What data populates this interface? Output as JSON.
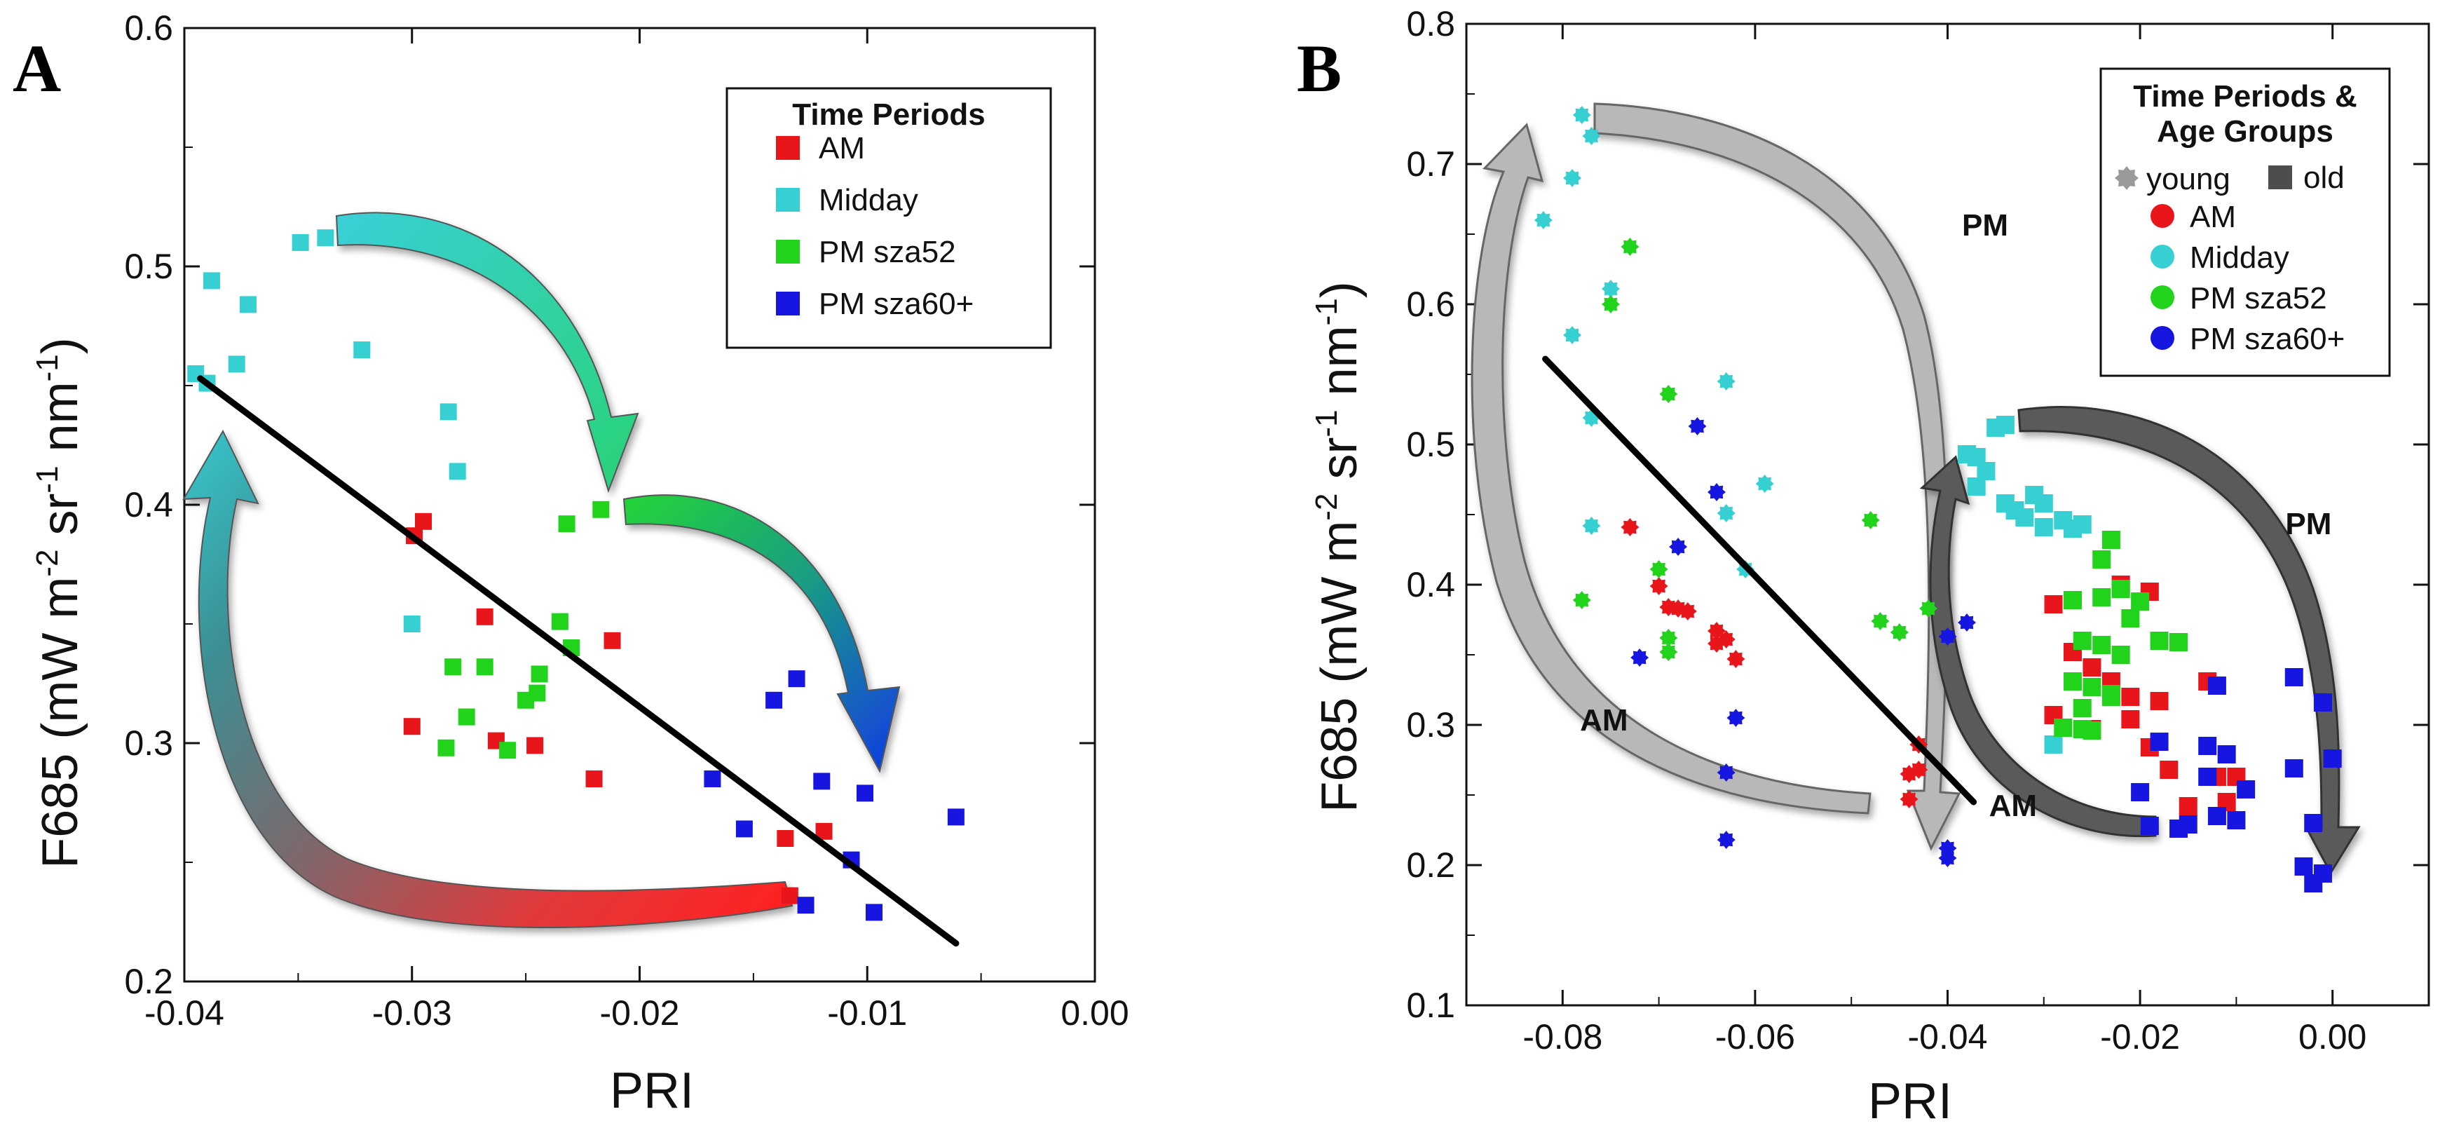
{
  "chart_data": [
    {
      "panel": "A",
      "type": "scatter",
      "xlabel": "PRI",
      "ylabel": "F685 (mW m-2 sr-1 nm-1)",
      "xlim": [
        -0.04,
        0.0
      ],
      "ylim": [
        0.2,
        0.6
      ],
      "xticks": [
        "-0.04",
        "-0.03",
        "-0.02",
        "-0.01",
        "0.00"
      ],
      "yticks": [
        "0.2",
        "0.3",
        "0.4",
        "0.5",
        "0.6"
      ],
      "legend": {
        "title": "Time Periods",
        "placement": "top-right"
      },
      "series": [
        {
          "name": "AM",
          "color": "#e8161b",
          "marker": "square",
          "points": [
            [
              -0.0299,
              0.387
            ],
            [
              -0.0295,
              0.393
            ],
            [
              -0.0268,
              0.353
            ],
            [
              -0.0212,
              0.343
            ],
            [
              -0.03,
              0.307
            ],
            [
              -0.0263,
              0.301
            ],
            [
              -0.0246,
              0.299
            ],
            [
              -0.022,
              0.285
            ],
            [
              -0.0136,
              0.26
            ],
            [
              -0.0119,
              0.263
            ],
            [
              -0.0134,
              0.236
            ]
          ]
        },
        {
          "name": "Midday",
          "color": "#36d0d2",
          "marker": "square",
          "points": [
            [
              -0.0395,
              0.455
            ],
            [
              -0.039,
              0.451
            ],
            [
              -0.0388,
              0.494
            ],
            [
              -0.0377,
              0.459
            ],
            [
              -0.0372,
              0.484
            ],
            [
              -0.0349,
              0.51
            ],
            [
              -0.0338,
              0.512
            ],
            [
              -0.0322,
              0.465
            ],
            [
              -0.03,
              0.35
            ],
            [
              -0.0284,
              0.439
            ],
            [
              -0.028,
              0.414
            ]
          ]
        },
        {
          "name": "PM sza52",
          "color": "#22d31c",
          "marker": "square",
          "points": [
            [
              -0.0217,
              0.398
            ],
            [
              -0.0232,
              0.392
            ],
            [
              -0.0235,
              0.351
            ],
            [
              -0.023,
              0.34
            ],
            [
              -0.0282,
              0.332
            ],
            [
              -0.0268,
              0.332
            ],
            [
              -0.0244,
              0.329
            ],
            [
              -0.0245,
              0.321
            ],
            [
              -0.0276,
              0.311
            ],
            [
              -0.025,
              0.318
            ],
            [
              -0.0285,
              0.298
            ],
            [
              -0.0258,
              0.297
            ]
          ]
        },
        {
          "name": "PM sza60+",
          "color": "#1616e0",
          "marker": "square",
          "points": [
            [
              -0.0131,
              0.327
            ],
            [
              -0.0141,
              0.318
            ],
            [
              -0.0168,
              0.285
            ],
            [
              -0.0154,
              0.264
            ],
            [
              -0.012,
              0.284
            ],
            [
              -0.0101,
              0.279
            ],
            [
              -0.0061,
              0.269
            ],
            [
              -0.0107,
              0.251
            ],
            [
              -0.0097,
              0.229
            ],
            [
              -0.0127,
              0.232
            ]
          ]
        }
      ],
      "regression_line": [
        [
          -0.0393,
          0.453
        ],
        [
          -0.0061,
          0.216
        ]
      ],
      "annotations": []
    },
    {
      "panel": "B",
      "type": "scatter",
      "xlabel": "PRI",
      "ylabel": "F685 (mW m-2 sr-1 nm-1)",
      "xlim": [
        -0.09,
        0.01
      ],
      "ylim": [
        0.1,
        0.8
      ],
      "xticks": [
        "-0.08",
        "-0.06",
        "-0.04",
        "-0.02",
        "0.00"
      ],
      "yticks": [
        "0.1",
        "0.2",
        "0.3",
        "0.4",
        "0.5",
        "0.6",
        "0.7",
        "0.8"
      ],
      "legend": {
        "title_line1": "Time Periods &",
        "title_line2": "Age Groups",
        "placement": "top-right",
        "age_groups": [
          {
            "name": "young",
            "color": "#9a9a9a",
            "marker": "star"
          },
          {
            "name": "old",
            "color": "#4d4d4d",
            "marker": "square"
          }
        ]
      },
      "series": [
        {
          "name": "AM",
          "color": "#e8161b",
          "young": [
            [
              -0.073,
              0.441
            ],
            [
              -0.07,
              0.399
            ],
            [
              -0.068,
              0.383
            ],
            [
              -0.067,
              0.381
            ],
            [
              -0.069,
              0.384
            ],
            [
              -0.064,
              0.367
            ],
            [
              -0.063,
              0.361
            ],
            [
              -0.064,
              0.358
            ],
            [
              -0.062,
              0.347
            ],
            [
              -0.044,
              0.265
            ],
            [
              -0.043,
              0.268
            ],
            [
              -0.044,
              0.247
            ],
            [
              -0.043,
              0.286
            ]
          ],
          "old": [
            [
              -0.022,
              0.4
            ],
            [
              -0.019,
              0.395
            ],
            [
              -0.029,
              0.386
            ],
            [
              -0.027,
              0.352
            ],
            [
              -0.025,
              0.341
            ],
            [
              -0.023,
              0.331
            ],
            [
              -0.021,
              0.32
            ],
            [
              -0.018,
              0.317
            ],
            [
              -0.021,
              0.304
            ],
            [
              -0.025,
              0.297
            ],
            [
              -0.029,
              0.307
            ],
            [
              -0.013,
              0.331
            ],
            [
              -0.017,
              0.268
            ],
            [
              -0.012,
              0.263
            ],
            [
              -0.01,
              0.263
            ],
            [
              -0.015,
              0.242
            ],
            [
              -0.011,
              0.245
            ],
            [
              -0.019,
              0.284
            ]
          ]
        },
        {
          "name": "Midday",
          "color": "#36d0d2",
          "young": [
            [
              -0.078,
              0.735
            ],
            [
              -0.077,
              0.72
            ],
            [
              -0.079,
              0.69
            ],
            [
              -0.082,
              0.66
            ],
            [
              -0.075,
              0.611
            ],
            [
              -0.079,
              0.578
            ],
            [
              -0.063,
              0.545
            ],
            [
              -0.077,
              0.519
            ],
            [
              -0.059,
              0.472
            ],
            [
              -0.063,
              0.451
            ],
            [
              -0.077,
              0.442
            ],
            [
              -0.061,
              0.411
            ]
          ],
          "old": [
            [
              -0.035,
              0.512
            ],
            [
              -0.034,
              0.514
            ],
            [
              -0.037,
              0.491
            ],
            [
              -0.038,
              0.493
            ],
            [
              -0.036,
              0.481
            ],
            [
              -0.037,
              0.47
            ],
            [
              -0.034,
              0.458
            ],
            [
              -0.031,
              0.464
            ],
            [
              -0.03,
              0.458
            ],
            [
              -0.033,
              0.453
            ],
            [
              -0.028,
              0.446
            ],
            [
              -0.027,
              0.44
            ],
            [
              -0.026,
              0.443
            ],
            [
              -0.03,
              0.441
            ],
            [
              -0.032,
              0.448
            ],
            [
              -0.029,
              0.286
            ]
          ]
        },
        {
          "name": "PM sza52",
          "color": "#22d31c",
          "young": [
            [
              -0.073,
              0.641
            ],
            [
              -0.075,
              0.6
            ],
            [
              -0.069,
              0.536
            ],
            [
              -0.07,
              0.411
            ],
            [
              -0.078,
              0.389
            ],
            [
              -0.069,
              0.362
            ],
            [
              -0.069,
              0.352
            ],
            [
              -0.048,
              0.446
            ],
            [
              -0.047,
              0.374
            ],
            [
              -0.045,
              0.366
            ],
            [
              -0.042,
              0.383
            ]
          ],
          "old": [
            [
              -0.023,
              0.432
            ],
            [
              -0.024,
              0.418
            ],
            [
              -0.022,
              0.397
            ],
            [
              -0.024,
              0.391
            ],
            [
              -0.027,
              0.389
            ],
            [
              -0.02,
              0.388
            ],
            [
              -0.021,
              0.376
            ],
            [
              -0.018,
              0.36
            ],
            [
              -0.026,
              0.36
            ],
            [
              -0.024,
              0.357
            ],
            [
              -0.022,
              0.35
            ],
            [
              -0.027,
              0.331
            ],
            [
              -0.025,
              0.327
            ],
            [
              -0.023,
              0.322
            ],
            [
              -0.026,
              0.312
            ],
            [
              -0.028,
              0.298
            ],
            [
              -0.026,
              0.297
            ],
            [
              -0.025,
              0.296
            ],
            [
              -0.023,
              0.32
            ],
            [
              -0.016,
              0.359
            ]
          ]
        },
        {
          "name": "PM sza60+",
          "color": "#1616e0",
          "young": [
            [
              -0.066,
              0.513
            ],
            [
              -0.064,
              0.466
            ],
            [
              -0.068,
              0.427
            ],
            [
              -0.072,
              0.348
            ],
            [
              -0.062,
              0.305
            ],
            [
              -0.063,
              0.266
            ],
            [
              -0.063,
              0.218
            ],
            [
              -0.04,
              0.363
            ],
            [
              -0.038,
              0.373
            ],
            [
              -0.04,
              0.212
            ],
            [
              -0.04,
              0.205
            ]
          ],
          "old": [
            [
              -0.012,
              0.328
            ],
            [
              -0.018,
              0.288
            ],
            [
              -0.013,
              0.285
            ],
            [
              -0.011,
              0.279
            ],
            [
              -0.02,
              0.252
            ],
            [
              -0.013,
              0.263
            ],
            [
              -0.009,
              0.254
            ],
            [
              -0.004,
              0.269
            ],
            [
              -0.015,
              0.229
            ],
            [
              -0.01,
              0.232
            ],
            [
              -0.012,
              0.235
            ],
            [
              -0.004,
              0.334
            ],
            [
              -0.001,
              0.316
            ],
            [
              0.0,
              0.276
            ],
            [
              -0.002,
              0.23
            ],
            [
              -0.003,
              0.199
            ],
            [
              -0.002,
              0.187
            ],
            [
              -0.001,
              0.194
            ],
            [
              -0.019,
              0.228
            ],
            [
              -0.016,
              0.226
            ]
          ]
        }
      ],
      "regression_line": [
        [
          -0.0818,
          0.561
        ],
        [
          -0.0373,
          0.245
        ]
      ],
      "annotations": [
        {
          "text": "PM",
          "x": -0.0361,
          "y": 0.649
        },
        {
          "text": "AM",
          "x": -0.0757,
          "y": 0.296
        },
        {
          "text": "PM",
          "x": -0.0025,
          "y": 0.436
        },
        {
          "text": "AM",
          "x": -0.0332,
          "y": 0.235
        }
      ]
    }
  ]
}
